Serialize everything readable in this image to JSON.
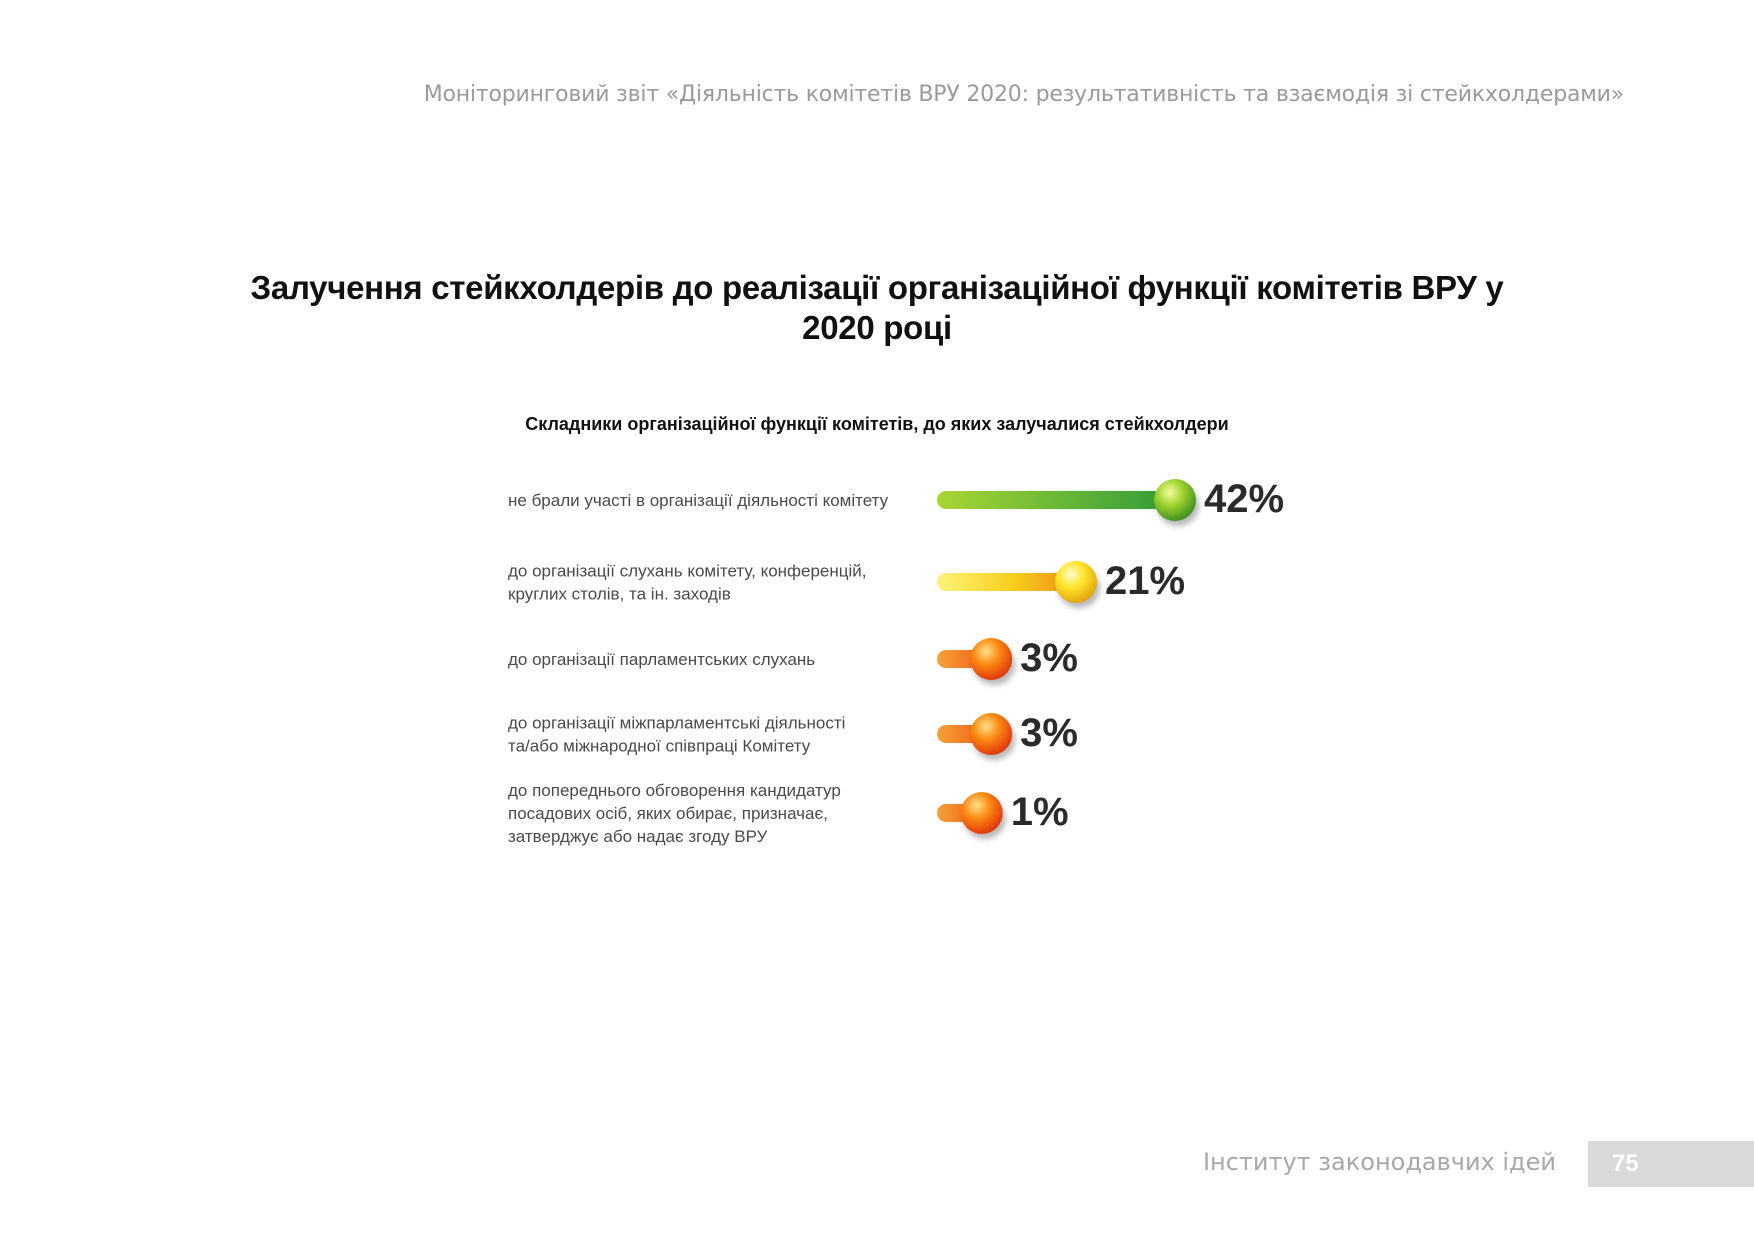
{
  "header": {
    "running_title": "Моніторинговий звіт «Діяльність комітетів ВРУ 2020: результативність та взаємодія зі стейкхолдерами»"
  },
  "chart_data": {
    "type": "bar",
    "title": "Залучення стейкхолдерів до реалізації організаційної функції комітетів ВРУ у 2020 році",
    "subtitle": "Складники організаційної функції комітетів, до яких залучалися стейкхолдери",
    "categories": [
      [
        "не брали участі в організації діяльності комітету"
      ],
      [
        "до організації слухань комітету, конференцій,",
        "круглих столів, та ін. заходів"
      ],
      [
        "до організації парламентських слухань"
      ],
      [
        "до організації міжпарламентські діяльності",
        "та/або міжнародної співпраці Комітету"
      ],
      [
        "до попереднього обговорення кандидатур",
        "посадових осіб, яких обирає, призначає,",
        "затверджує або надає згоду ВРУ"
      ]
    ],
    "values": [
      42,
      21,
      3,
      3,
      1
    ],
    "value_labels": [
      "42%",
      "21%",
      "3%",
      "3%",
      "1%"
    ],
    "unit": "%",
    "bar_colors": [
      "green",
      "yellow",
      "orange",
      "orange",
      "orange"
    ],
    "legend": "none",
    "grid": false
  },
  "footer": {
    "institute": "Інститут законодавчих ідей",
    "page_number": "75"
  },
  "colors": {
    "header_text": "#9a9a9a",
    "footer_box": "#d9d9d9",
    "green": "#4caf2c",
    "yellow": "#f2d51a",
    "orange": "#f07a12"
  }
}
